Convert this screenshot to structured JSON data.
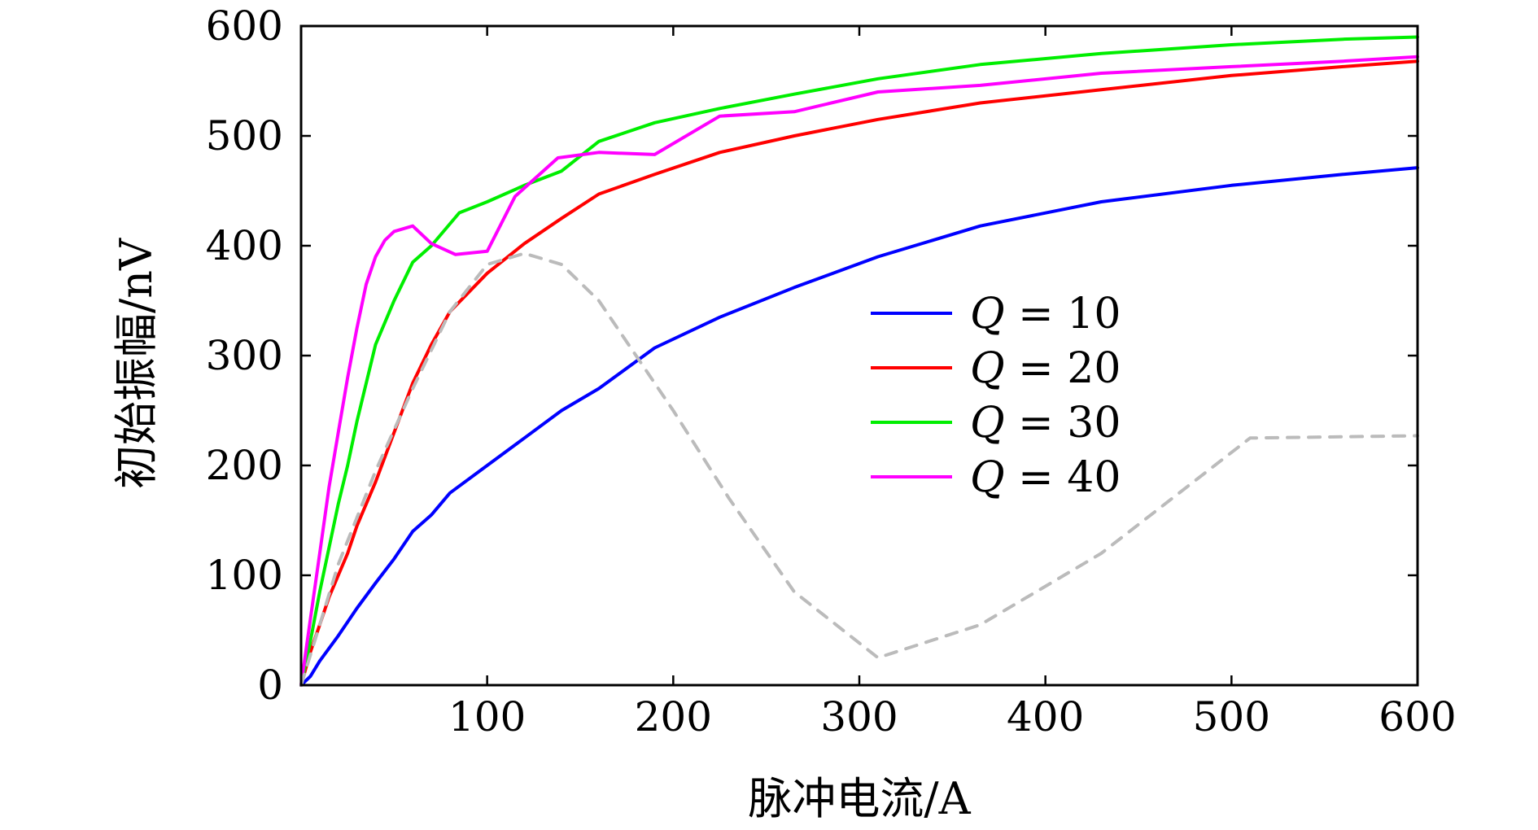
{
  "chart_data": {
    "type": "line",
    "title": "",
    "xlabel": "脉冲电流/A",
    "ylabel": "初始振幅/nV",
    "xlim": [
      0,
      600
    ],
    "ylim": [
      0,
      600
    ],
    "xticks": [
      100,
      200,
      300,
      400,
      500,
      600
    ],
    "yticks": [
      0,
      100,
      200,
      300,
      400,
      500,
      600
    ],
    "grid": false,
    "legend_position": "center-right",
    "series": [
      {
        "name": "Q = 10",
        "legend_symbol": "Q",
        "legend_rest": " = 10",
        "color": "#0000ff",
        "style": "solid",
        "x": [
          0,
          5,
          10,
          20,
          30,
          40,
          50,
          60,
          70,
          80,
          100,
          120,
          140,
          160,
          190,
          225,
          265,
          310,
          365,
          430,
          500,
          560,
          600
        ],
        "y": [
          0,
          8,
          22,
          45,
          70,
          93,
          115,
          140,
          155,
          175,
          200,
          225,
          250,
          270,
          307,
          335,
          362,
          390,
          418,
          440,
          455,
          465,
          471
        ]
      },
      {
        "name": "Q = 20",
        "legend_symbol": "Q",
        "legend_rest": " = 20",
        "color": "#ff0000",
        "style": "solid",
        "x": [
          0,
          5,
          10,
          15,
          20,
          25,
          30,
          40,
          50,
          60,
          70,
          80,
          100,
          120,
          140,
          160,
          190,
          225,
          265,
          310,
          365,
          430,
          500,
          560,
          600
        ],
        "y": [
          0,
          30,
          55,
          80,
          100,
          120,
          145,
          185,
          230,
          275,
          310,
          340,
          375,
          402,
          425,
          447,
          465,
          485,
          500,
          515,
          530,
          542,
          555,
          563,
          568
        ]
      },
      {
        "name": "Q = 30",
        "legend_symbol": "Q",
        "legend_rest": " = 30",
        "color": "#00ee00",
        "style": "solid",
        "x": [
          0,
          5,
          10,
          15,
          20,
          25,
          30,
          40,
          50,
          60,
          70,
          85,
          100,
          120,
          140,
          160,
          190,
          225,
          265,
          310,
          365,
          430,
          500,
          560,
          600
        ],
        "y": [
          0,
          40,
          85,
          125,
          165,
          200,
          240,
          310,
          350,
          385,
          400,
          430,
          440,
          455,
          468,
          495,
          512,
          525,
          538,
          552,
          565,
          575,
          583,
          588,
          590
        ]
      },
      {
        "name": "Q = 40",
        "legend_symbol": "Q",
        "legend_rest": " = 40",
        "color": "#ff00ff",
        "style": "solid",
        "x": [
          0,
          5,
          10,
          15,
          20,
          25,
          30,
          35,
          40,
          45,
          50,
          60,
          70,
          83,
          100,
          115,
          138,
          160,
          190,
          225,
          265,
          310,
          365,
          430,
          500,
          560,
          600
        ],
        "y": [
          0,
          60,
          120,
          180,
          230,
          280,
          325,
          365,
          390,
          405,
          413,
          418,
          402,
          392,
          395,
          445,
          480,
          485,
          483,
          518,
          522,
          540,
          546,
          557,
          563,
          568,
          572
        ]
      },
      {
        "name": "",
        "color": "#bbbbbb",
        "style": "dashed",
        "x": [
          0,
          10,
          20,
          40,
          60,
          80,
          100,
          120,
          140,
          160,
          180,
          200,
          230,
          265,
          310,
          365,
          430,
          510,
          600
        ],
        "y": [
          0,
          55,
          110,
          195,
          270,
          340,
          383,
          393,
          383,
          350,
          300,
          250,
          170,
          85,
          25,
          55,
          120,
          225,
          227
        ]
      }
    ]
  }
}
